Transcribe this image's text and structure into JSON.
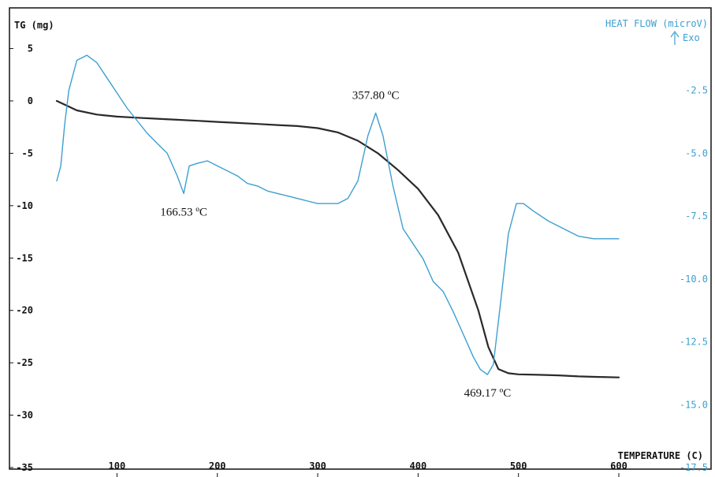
{
  "chart_data": {
    "type": "line",
    "title": "",
    "xlabel": "TEMPERATURE (C)",
    "ylabel_left": "TG (mg)",
    "ylabel_right": "HEAT FLOW (microV)",
    "exo_label": "Exo",
    "xlim": [
      40,
      600
    ],
    "ylim_left": [
      -35,
      7
    ],
    "ylim_right": [
      -17.5,
      0
    ],
    "x_ticks": [
      100,
      200,
      300,
      400,
      500,
      600
    ],
    "y_ticks_left": [
      5,
      0,
      -5,
      -10,
      -15,
      -20,
      -25,
      -30,
      -35
    ],
    "y_ticks_right": [
      -2.5,
      -5.0,
      -7.5,
      -10.0,
      -12.5,
      -15.0,
      -17.5
    ],
    "y_tick_labels_right": [
      "-2.5",
      "-5.0",
      "-7.5",
      "-10.0",
      "-12.5",
      "-15.0",
      "-17.5"
    ],
    "grid": false,
    "colors": {
      "tg": "#2a2a2a",
      "heat_flow": "#3d9fd0",
      "axes": "#111111",
      "right_labels": "#3d9fd0"
    },
    "series": [
      {
        "axis": "left",
        "x": [
          40,
          60,
          80,
          100,
          120,
          140,
          160,
          180,
          200,
          220,
          240,
          260,
          280,
          300,
          320,
          340,
          360,
          380,
          400,
          420,
          440,
          460,
          470,
          480,
          490,
          500,
          520,
          540,
          560,
          580,
          600
        ],
        "y": [
          0,
          -0.9,
          -1.3,
          -1.5,
          -1.6,
          -1.7,
          -1.8,
          -1.9,
          -2.0,
          -2.1,
          -2.2,
          -2.3,
          -2.4,
          -2.6,
          -3.0,
          -3.8,
          -5.0,
          -6.6,
          -8.4,
          -10.9,
          -14.5,
          -20.0,
          -23.5,
          -25.6,
          -26.0,
          -26.1,
          -26.15,
          -26.2,
          -26.3,
          -26.35,
          -26.4
        ]
      },
      {
        "axis": "right",
        "x": [
          40,
          44,
          48,
          52,
          60,
          70,
          80,
          90,
          100,
          110,
          120,
          130,
          140,
          150,
          160,
          166.53,
          172,
          180,
          190,
          200,
          210,
          220,
          230,
          240,
          250,
          260,
          270,
          280,
          290,
          300,
          310,
          320,
          330,
          340,
          350,
          357.8,
          365,
          375,
          385,
          395,
          405,
          415,
          425,
          435,
          445,
          455,
          462,
          469.17,
          475,
          482,
          490,
          498,
          505,
          515,
          530,
          545,
          560,
          575,
          590,
          600
        ],
        "y": [
          -6.1,
          -5.5,
          -3.8,
          -2.5,
          -1.3,
          -1.1,
          -1.4,
          -2.0,
          -2.6,
          -3.2,
          -3.7,
          -4.2,
          -4.6,
          -5.0,
          -5.9,
          -6.6,
          -5.5,
          -5.4,
          -5.3,
          -5.5,
          -5.7,
          -5.9,
          -6.2,
          -6.3,
          -6.5,
          -6.6,
          -6.7,
          -6.8,
          -6.9,
          -7.0,
          -7.0,
          -7.0,
          -6.8,
          -6.1,
          -4.3,
          -3.4,
          -4.3,
          -6.3,
          -8.0,
          -8.6,
          -9.2,
          -10.1,
          -10.5,
          -11.3,
          -12.2,
          -13.1,
          -13.6,
          -13.8,
          -13.4,
          -11.0,
          -8.2,
          -7.0,
          -7.0,
          -7.3,
          -7.7,
          -8.0,
          -8.3,
          -8.4,
          -8.4,
          -8.4
        ]
      }
    ],
    "annotations": [
      {
        "text": "166.53 ºC",
        "x": 166.53,
        "y": -6.6,
        "axis": "right",
        "place": "below"
      },
      {
        "text": "357.80 ºC",
        "x": 357.8,
        "y": -3.4,
        "axis": "right",
        "place": "above"
      },
      {
        "text": "469.17 ºC",
        "x": 469.17,
        "y": -13.8,
        "axis": "right",
        "place": "below"
      }
    ]
  }
}
